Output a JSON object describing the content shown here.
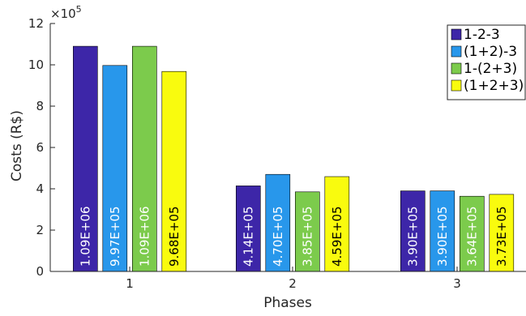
{
  "chart_data": {
    "type": "bar",
    "title": "",
    "xlabel": "Phases",
    "ylabel": "Costs (R$)",
    "scale_exponent_label": "×10",
    "scale_exponent": "5",
    "categories": [
      "1",
      "2",
      "3"
    ],
    "ylim": [
      0,
      1200000
    ],
    "yticks": [
      0,
      200000,
      400000,
      600000,
      800000,
      1000000,
      1200000
    ],
    "ytick_labels": [
      "0",
      "2",
      "4",
      "6",
      "8",
      "10",
      "12"
    ],
    "grid": false,
    "legend_position": "top-right",
    "series": [
      {
        "name": "1-2-3",
        "color": "#3d26a8",
        "label_color": "#ffffff",
        "values": [
          1090000,
          414000,
          390000
        ],
        "labels": [
          "1.09E+06",
          "4.14E+05",
          "3.90E+05"
        ]
      },
      {
        "name": "(1+2)-3",
        "color": "#2897eb",
        "label_color": "#ffffff",
        "values": [
          997000,
          470000,
          390000
        ],
        "labels": [
          "9.97E+05",
          "4.70E+05",
          "3.90E+05"
        ]
      },
      {
        "name": "1-(2+3)",
        "color": "#7ccb4c",
        "label_color": "#ffffff",
        "values": [
          1090000,
          385000,
          364000
        ],
        "labels": [
          "1.09E+06",
          "3.85E+05",
          "3.64E+05"
        ]
      },
      {
        "name": "(1+2+3)",
        "color": "#f9fb0e",
        "label_color": "#000000",
        "values": [
          968000,
          459000,
          373000
        ],
        "labels": [
          "9.68E+05",
          "4.59E+05",
          "3.73E+05"
        ]
      }
    ]
  }
}
